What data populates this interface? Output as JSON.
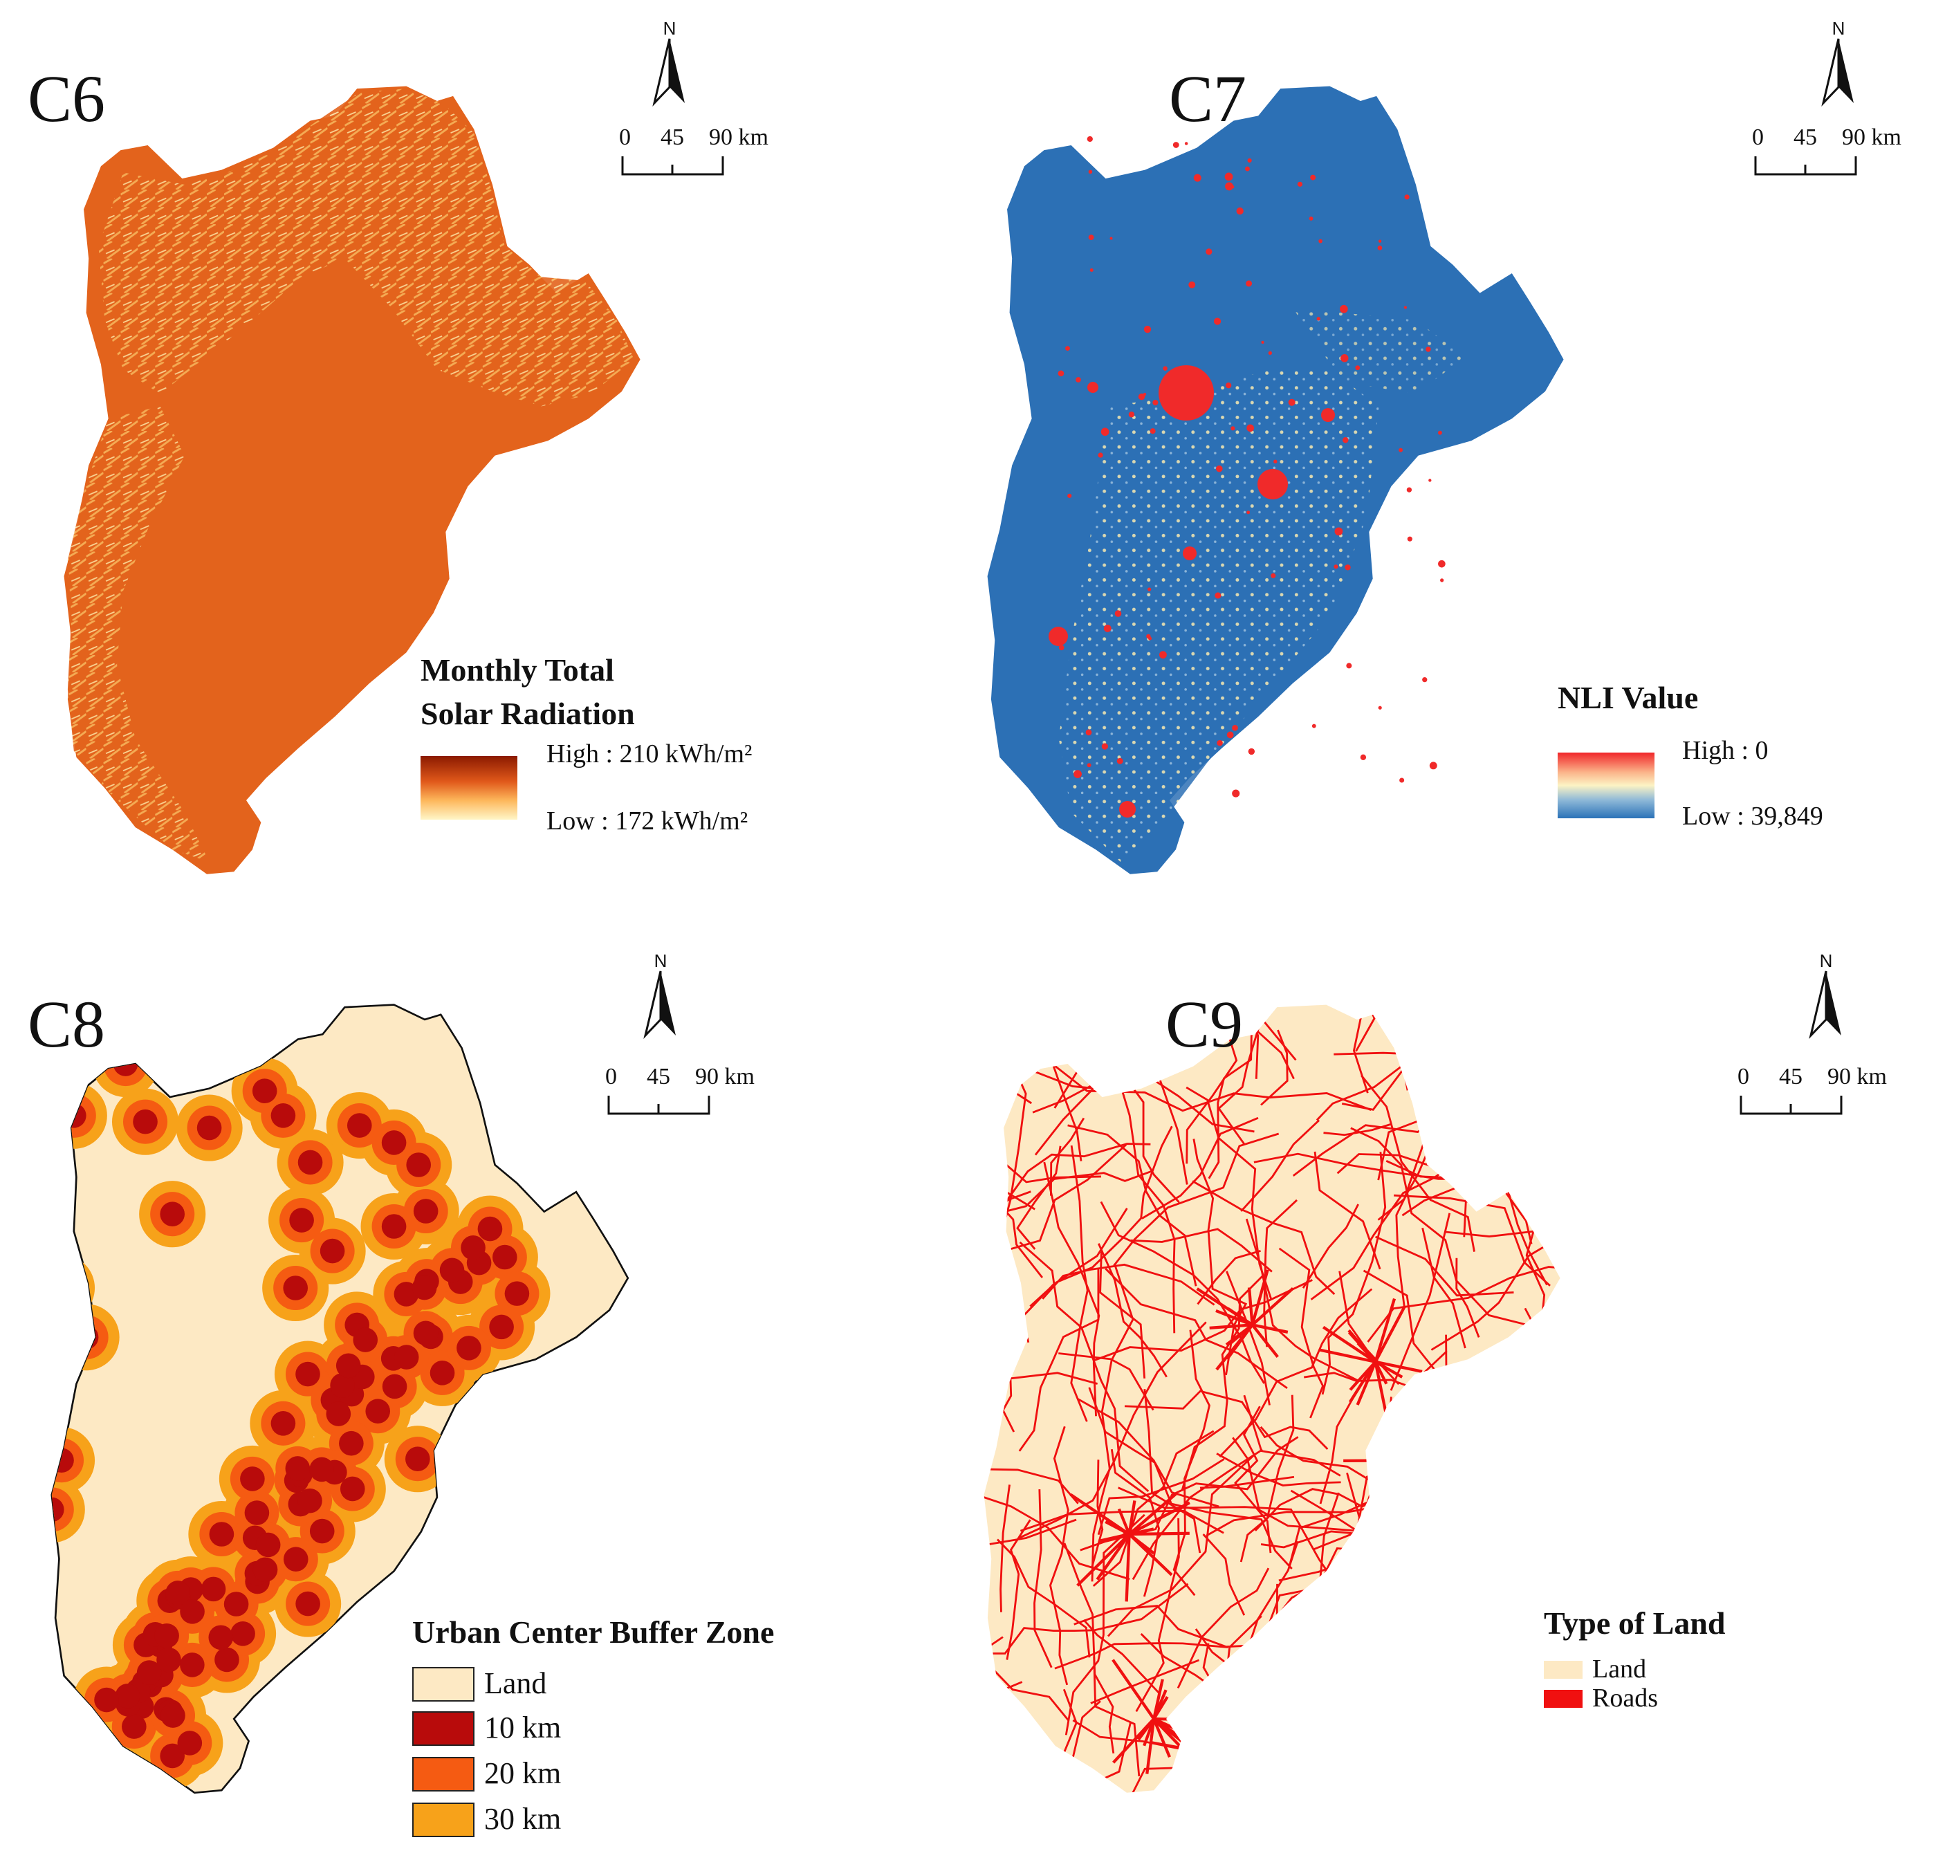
{
  "panels": {
    "c6": {
      "label": "C6",
      "north": "N",
      "scale": {
        "t0": "0",
        "t1": "45",
        "t2": "90 km"
      },
      "legend": {
        "title_line1": "Monthly Total",
        "title_line2": "Solar Radiation",
        "high": "High : 210 kWh/m²",
        "low": "Low : 172 kWh/m²",
        "colors": [
          "#8b1a00",
          "#e0581a",
          "#fdb85c",
          "#fff6c8"
        ]
      }
    },
    "c7": {
      "label": "C7",
      "north": "N",
      "scale": {
        "t0": "0",
        "t1": "45",
        "t2": "90 km"
      },
      "legend": {
        "title": "NLI Value",
        "high": "High : 0",
        "low": "Low : 39,849",
        "colors": [
          "#f0262a",
          "#fbb48a",
          "#fcf3c4",
          "#8fb9d8",
          "#2b72b8"
        ]
      }
    },
    "c8": {
      "label": "C8",
      "north": "N",
      "scale": {
        "t0": "0",
        "t1": "45",
        "t2": "90 km"
      },
      "legend": {
        "title": "Urban Center Buffer Zone",
        "items": [
          {
            "label": "Land",
            "color": "#fde9c4"
          },
          {
            "label": "10 km",
            "color": "#b80b0b"
          },
          {
            "label": "20 km",
            "color": "#f55b12"
          },
          {
            "label": "30 km",
            "color": "#f7a21a"
          }
        ]
      }
    },
    "c9": {
      "label": "C9",
      "north": "N",
      "scale": {
        "t0": "0",
        "t1": "45",
        "t2": "90 km"
      },
      "legend": {
        "title": "Type of Land",
        "items": [
          {
            "label": "Land",
            "color": "#fde9c4"
          },
          {
            "label": "Roads",
            "color": "#f01010"
          }
        ]
      }
    }
  },
  "colors": {
    "solar_fill": "#e3631c",
    "nli_fill": "#2c70b5",
    "nli_bright": "#f02a2a",
    "land": "#fde9c4",
    "road": "#f01010",
    "buffer10": "#b80b0b",
    "buffer20": "#f55b12",
    "buffer30": "#f7a21a"
  }
}
